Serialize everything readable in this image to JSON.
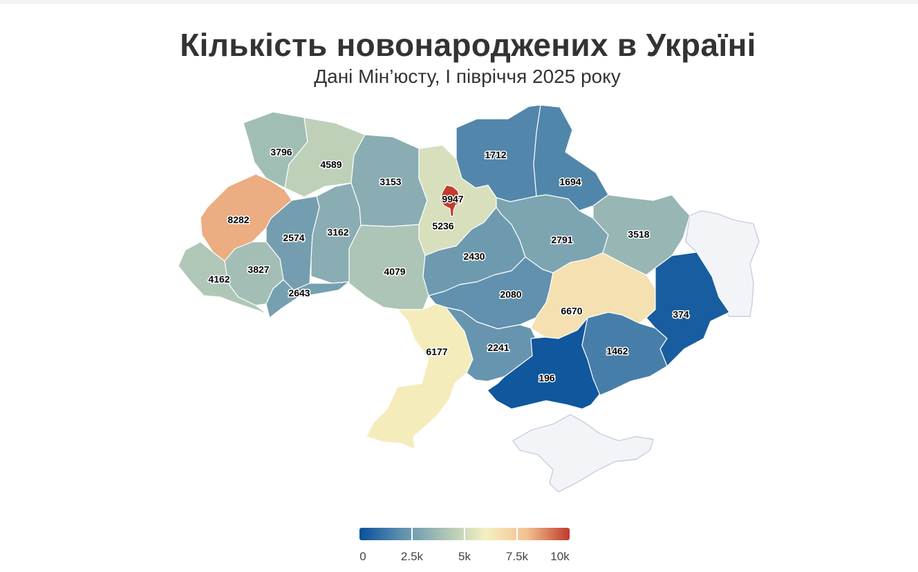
{
  "title": "Кількість новонароджених в Україні",
  "subtitle": "Дані Мін’юсту, І півріччя 2025 року",
  "chart_data": {
    "type": "choropleth",
    "title": "Кількість новонароджених в Україні",
    "subtitle": "Дані Мін’юсту, І півріччя 2025 року",
    "color_range": [
      0,
      10000
    ],
    "colorscale": [
      "#08519c",
      "#5e8fae",
      "#a9c3b6",
      "#f5f0c0",
      "#f2c08f",
      "#c0392b"
    ],
    "no_data_color": "#f3f4f8",
    "regions": [
      {
        "id": "volyn",
        "value": 3796
      },
      {
        "id": "rivne",
        "value": 4589
      },
      {
        "id": "zhytomyr",
        "value": 3153
      },
      {
        "id": "kyiv-oblast",
        "value": 5236
      },
      {
        "id": "kyiv-city",
        "value": 9947
      },
      {
        "id": "chernihiv",
        "value": 1712
      },
      {
        "id": "sumy",
        "value": 1694
      },
      {
        "id": "lviv",
        "value": 8282
      },
      {
        "id": "ternopil",
        "value": 2574
      },
      {
        "id": "khmelnytskyi",
        "value": 3162
      },
      {
        "id": "zakarpattia",
        "value": 4162
      },
      {
        "id": "ivano-frankivsk",
        "value": 3827
      },
      {
        "id": "chernivtsi",
        "value": 2643
      },
      {
        "id": "vinnytsia",
        "value": 4079
      },
      {
        "id": "cherkasy",
        "value": 2430
      },
      {
        "id": "poltava",
        "value": 2791
      },
      {
        "id": "kharkiv",
        "value": 3518
      },
      {
        "id": "kirovohrad",
        "value": 2080
      },
      {
        "id": "dnipropetrovsk",
        "value": 6670
      },
      {
        "id": "donetsk",
        "value": 374
      },
      {
        "id": "odesa",
        "value": 6177
      },
      {
        "id": "mykolaiv",
        "value": 2241
      },
      {
        "id": "kherson",
        "value": 196
      },
      {
        "id": "zaporizhzhia",
        "value": 1462
      },
      {
        "id": "luhansk",
        "value": null
      },
      {
        "id": "crimea",
        "value": null
      }
    ],
    "legend": {
      "placement": "bottom",
      "ticks": [
        {
          "value": 0,
          "label": "0"
        },
        {
          "value": 2500,
          "label": "2.5k"
        },
        {
          "value": 5000,
          "label": "5k"
        },
        {
          "value": 7500,
          "label": "7.5k"
        },
        {
          "value": 10000,
          "label": "10k"
        }
      ]
    }
  }
}
